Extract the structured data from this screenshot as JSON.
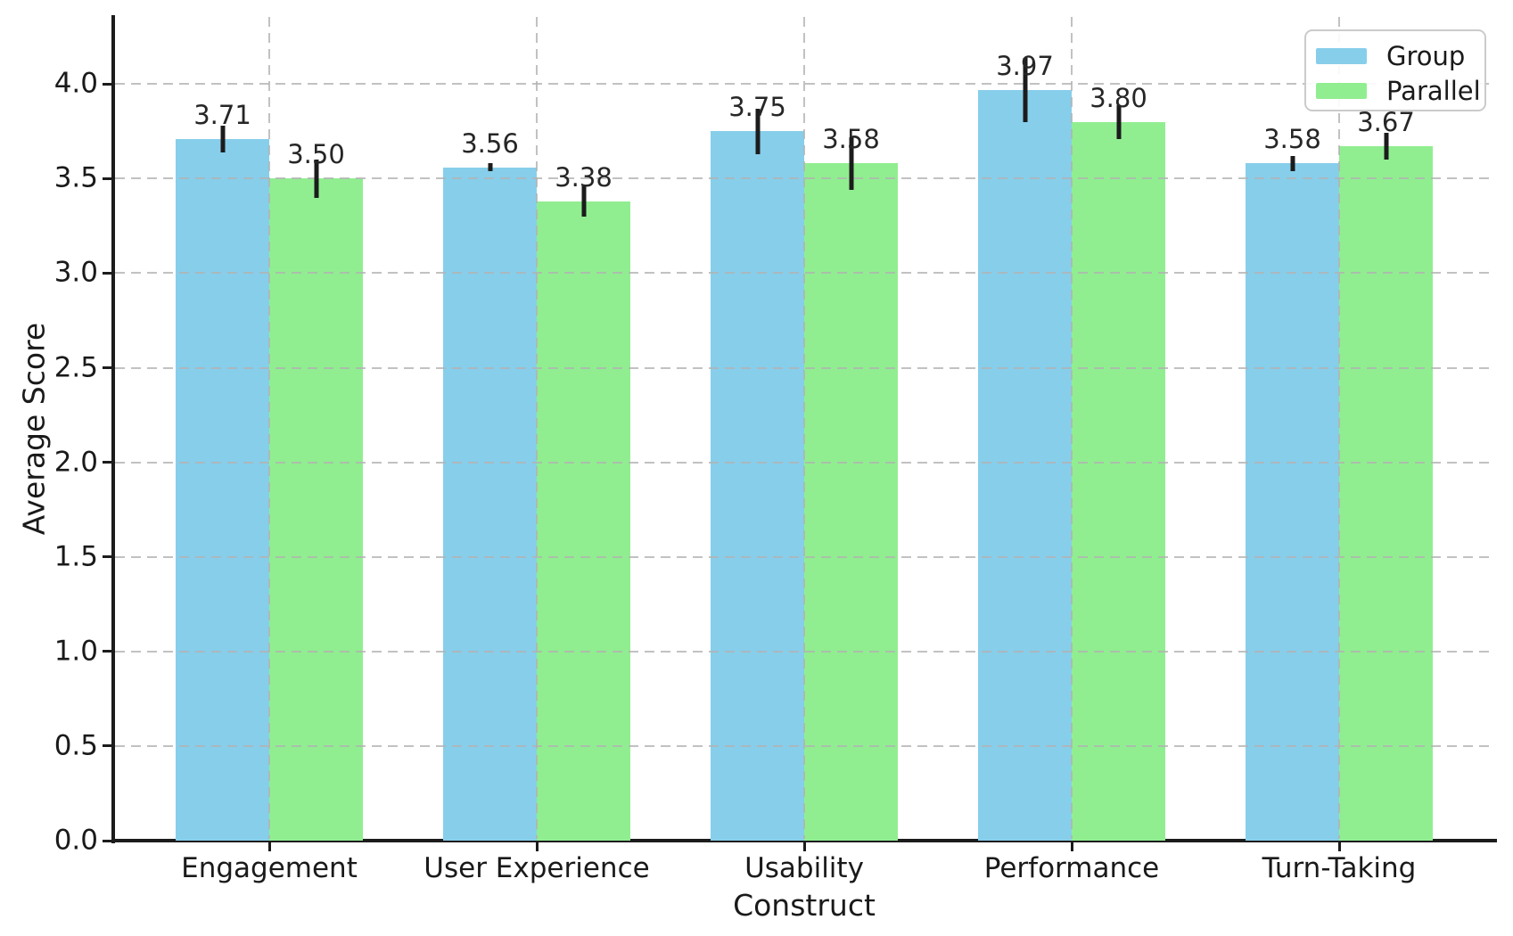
{
  "figure": {
    "ylabel": "Average Score",
    "xlabel": "Construct"
  },
  "legend": {
    "items": [
      {
        "label": "Group",
        "color": "#87CEEB"
      },
      {
        "label": "Parallel",
        "color": "#90EE90"
      }
    ]
  },
  "colors": {
    "group_bar": "#87CEEB",
    "parallel_bar": "#90EE90",
    "error_bar": "#1c1c1c",
    "grid": "#b2b2b2",
    "text": "#1a1a1a"
  },
  "chart_data": {
    "type": "bar",
    "title": "",
    "xlabel": "Construct",
    "ylabel": "Average Score",
    "categories": [
      "Engagement",
      "User Experience",
      "Usability",
      "Performance",
      "Turn-Taking"
    ],
    "series": [
      {
        "name": "Group",
        "color": "#87CEEB",
        "values": [
          3.71,
          3.56,
          3.75,
          3.97,
          3.58
        ],
        "errors": [
          0.07,
          0.02,
          0.12,
          0.17,
          0.04
        ]
      },
      {
        "name": "Parallel",
        "color": "#90EE90",
        "values": [
          3.5,
          3.38,
          3.58,
          3.8,
          3.67
        ],
        "errors": [
          0.1,
          0.08,
          0.14,
          0.09,
          0.07
        ]
      }
    ],
    "value_labels": [
      "3.71",
      "3.56",
      "3.75",
      "3.97",
      "3.58",
      "3.50",
      "3.38",
      "3.58",
      "3.80",
      "3.67"
    ],
    "ylim": [
      0,
      4.355
    ],
    "yticks": [
      "0.0",
      "0.5",
      "1.0",
      "1.5",
      "2.0",
      "2.5",
      "3.0",
      "3.5",
      "4.0"
    ],
    "grid": true,
    "grid_style": "dashed",
    "legend_position": "upper right"
  }
}
